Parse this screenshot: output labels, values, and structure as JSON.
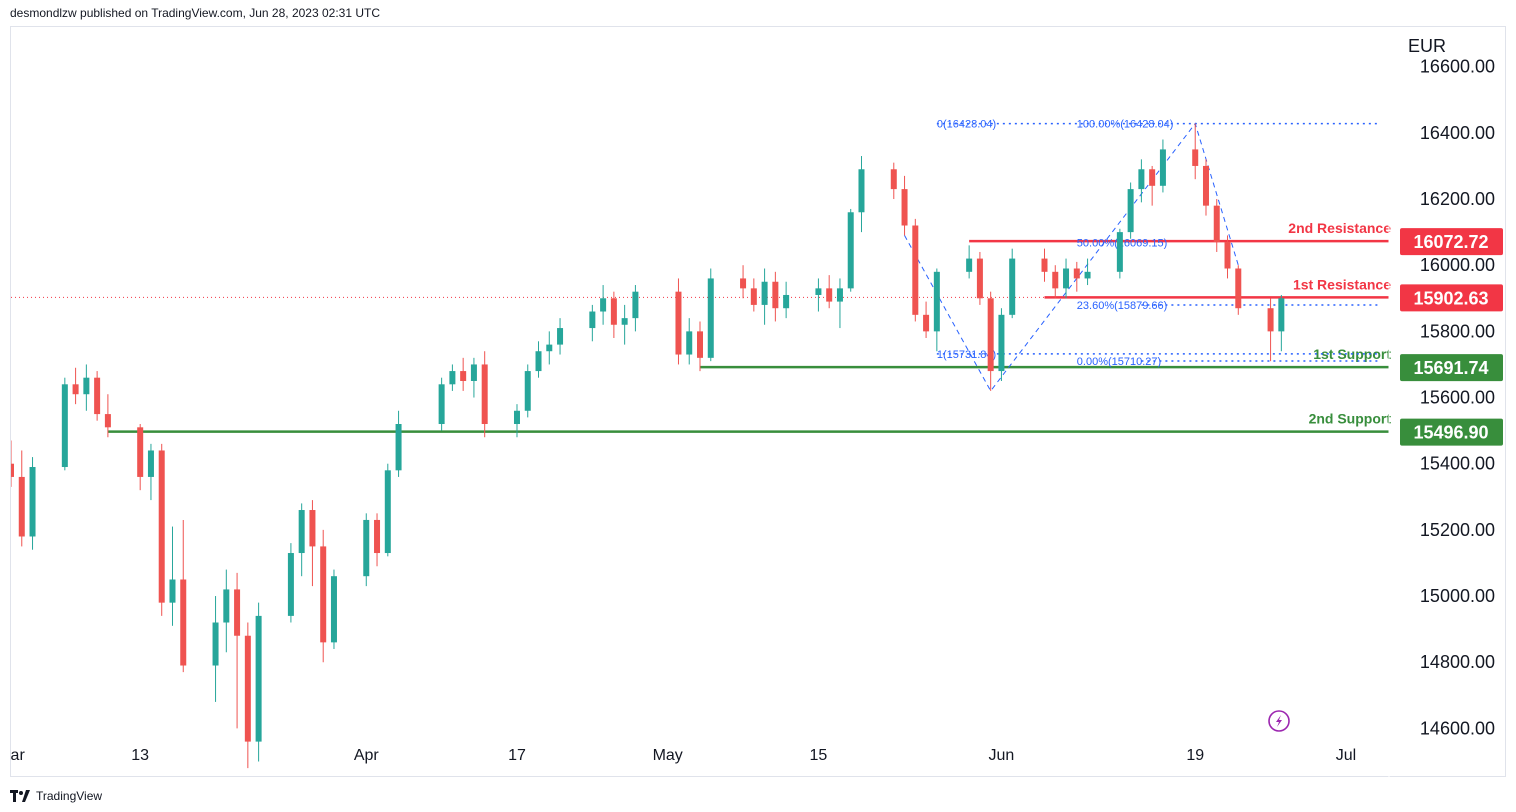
{
  "header": {
    "publisher": "desmondlzw published on TradingView.com, Jun 28, 2023 02:31 UTC"
  },
  "footer": {
    "brand": "TradingView",
    "logo_icon": "tradingview-logo-icon"
  },
  "chart_data": {
    "type": "candlestick",
    "currency": "EUR",
    "y_range": [
      14450,
      16720
    ],
    "y_ticks": [
      "16600.00",
      "16400.00",
      "16200.00",
      "16000.00",
      "15800.00",
      "15600.00",
      "15400.00",
      "15200.00",
      "15000.00",
      "14800.00",
      "14600.00"
    ],
    "y_tick_values": [
      16600,
      16400,
      16200,
      16000,
      15800,
      15600,
      15400,
      15200,
      15000,
      14800,
      14600
    ],
    "x_range": [
      "2023-03-01",
      "2023-07-07"
    ],
    "x_ticks": [
      {
        "label": "Mar",
        "date": "2023-03-01"
      },
      {
        "label": "13",
        "date": "2023-03-13"
      },
      {
        "label": "Apr",
        "date": "2023-04-03"
      },
      {
        "label": "17",
        "date": "2023-04-17"
      },
      {
        "label": "May",
        "date": "2023-05-01"
      },
      {
        "label": "15",
        "date": "2023-05-15"
      },
      {
        "label": "Jun",
        "date": "2023-06-01"
      },
      {
        "label": "19",
        "date": "2023-06-19"
      },
      {
        "label": "Jul",
        "date": "2023-07-03"
      }
    ],
    "last_price": 15902.63,
    "colors": {
      "up": "#26a69a",
      "down": "#ef5350",
      "resistance": "#f23645",
      "support": "#388e3c",
      "fib": "#2962ff",
      "last": "#f23645"
    },
    "levels": [
      {
        "name": "2nd Resistance",
        "value": 16072.72,
        "badge": "16072.72",
        "kind": "resistance",
        "start": "2023-05-29",
        "color": "#f23645"
      },
      {
        "name": "1st Resistance",
        "value": 15902.63,
        "badge": "15902.63",
        "kind": "resistance",
        "start": "2023-06-05",
        "color": "#f23645"
      },
      {
        "name": "1st Support",
        "value": 15691.74,
        "badge": "15691.74",
        "kind": "support",
        "start": "2023-05-04",
        "color": "#388e3c"
      },
      {
        "name": "2nd Support",
        "value": 15496.9,
        "badge": "15496.90",
        "kind": "support",
        "start": "2023-03-10",
        "color": "#388e3c"
      }
    ],
    "fib_annotations": [
      {
        "text": "0(16428.04)",
        "date": "2023-05-26",
        "value": 16428.04
      },
      {
        "text": "1(15731.84)",
        "date": "2023-05-26",
        "value": 15731.84
      },
      {
        "text": "100.00%(16428.04)",
        "date": "2023-06-08",
        "value": 16428.04
      },
      {
        "text": "50.00%(16069.15)",
        "date": "2023-06-08",
        "value": 16069.15
      },
      {
        "text": "23.60%(15879.66)",
        "date": "2023-06-08",
        "value": 15879.66
      },
      {
        "text": "0.00%(15710.27)",
        "date": "2023-06-08",
        "value": 15710.27
      }
    ],
    "fib_lines": [
      {
        "from": "2023-05-26",
        "to": "2023-07-06",
        "value": 16428.04
      },
      {
        "from": "2023-06-14",
        "to": "2023-07-06",
        "value": 15879.66
      },
      {
        "from": "2023-05-26",
        "to": "2023-07-06",
        "value": 15731.84
      },
      {
        "from": "2023-06-14",
        "to": "2023-07-06",
        "value": 15710.27
      }
    ],
    "zigzag": [
      {
        "date": "2023-05-23",
        "value": 16090
      },
      {
        "date": "2023-05-31",
        "value": 15620
      },
      {
        "date": "2023-06-19",
        "value": 16428.04
      },
      {
        "date": "2023-06-23",
        "value": 16000
      }
    ],
    "candles": [
      {
        "d": "2023-03-01",
        "o": 15400,
        "h": 15470,
        "l": 15330,
        "c": 15360
      },
      {
        "d": "2023-03-02",
        "o": 15360,
        "h": 15440,
        "l": 15150,
        "c": 15180
      },
      {
        "d": "2023-03-03",
        "o": 15180,
        "h": 15420,
        "l": 15140,
        "c": 15390
      },
      {
        "d": "2023-03-06",
        "o": 15390,
        "h": 15660,
        "l": 15380,
        "c": 15640
      },
      {
        "d": "2023-03-07",
        "o": 15640,
        "h": 15690,
        "l": 15580,
        "c": 15610
      },
      {
        "d": "2023-03-08",
        "o": 15610,
        "h": 15700,
        "l": 15560,
        "c": 15660
      },
      {
        "d": "2023-03-09",
        "o": 15660,
        "h": 15680,
        "l": 15530,
        "c": 15550
      },
      {
        "d": "2023-03-10",
        "o": 15550,
        "h": 15610,
        "l": 15480,
        "c": 15510
      },
      {
        "d": "2023-03-13",
        "o": 15510,
        "h": 15520,
        "l": 15320,
        "c": 15360
      },
      {
        "d": "2023-03-14",
        "o": 15360,
        "h": 15460,
        "l": 15290,
        "c": 15440
      },
      {
        "d": "2023-03-15",
        "o": 15440,
        "h": 15460,
        "l": 14940,
        "c": 14980
      },
      {
        "d": "2023-03-16",
        "o": 14980,
        "h": 15210,
        "l": 14910,
        "c": 15050
      },
      {
        "d": "2023-03-17",
        "o": 15050,
        "h": 15230,
        "l": 14770,
        "c": 14790
      },
      {
        "d": "2023-03-20",
        "o": 14790,
        "h": 15000,
        "l": 14680,
        "c": 14920
      },
      {
        "d": "2023-03-21",
        "o": 14920,
        "h": 15080,
        "l": 14830,
        "c": 15020
      },
      {
        "d": "2023-03-22",
        "o": 15020,
        "h": 15070,
        "l": 14600,
        "c": 14880
      },
      {
        "d": "2023-03-23",
        "o": 14880,
        "h": 14920,
        "l": 14480,
        "c": 14560
      },
      {
        "d": "2023-03-24",
        "o": 14560,
        "h": 14980,
        "l": 14500,
        "c": 14940
      },
      {
        "d": "2023-03-27",
        "o": 14940,
        "h": 15160,
        "l": 14920,
        "c": 15130
      },
      {
        "d": "2023-03-28",
        "o": 15130,
        "h": 15280,
        "l": 15060,
        "c": 15260
      },
      {
        "d": "2023-03-29",
        "o": 15260,
        "h": 15290,
        "l": 15030,
        "c": 15150
      },
      {
        "d": "2023-03-30",
        "o": 15150,
        "h": 15200,
        "l": 14800,
        "c": 14860
      },
      {
        "d": "2023-03-31",
        "o": 14860,
        "h": 15080,
        "l": 14840,
        "c": 15060
      },
      {
        "d": "2023-04-03",
        "o": 15060,
        "h": 15250,
        "l": 15030,
        "c": 15230
      },
      {
        "d": "2023-04-04",
        "o": 15230,
        "h": 15250,
        "l": 15090,
        "c": 15130
      },
      {
        "d": "2023-04-05",
        "o": 15130,
        "h": 15400,
        "l": 15120,
        "c": 15380
      },
      {
        "d": "2023-04-06",
        "o": 15380,
        "h": 15560,
        "l": 15360,
        "c": 15520
      },
      {
        "d": "2023-04-10",
        "o": 15520,
        "h": 15660,
        "l": 15500,
        "c": 15640
      },
      {
        "d": "2023-04-11",
        "o": 15640,
        "h": 15700,
        "l": 15620,
        "c": 15680
      },
      {
        "d": "2023-04-12",
        "o": 15680,
        "h": 15720,
        "l": 15620,
        "c": 15650
      },
      {
        "d": "2023-04-13",
        "o": 15650,
        "h": 15720,
        "l": 15600,
        "c": 15700
      },
      {
        "d": "2023-04-14",
        "o": 15700,
        "h": 15740,
        "l": 15480,
        "c": 15520
      },
      {
        "d": "2023-04-17",
        "o": 15520,
        "h": 15580,
        "l": 15480,
        "c": 15560
      },
      {
        "d": "2023-04-18",
        "o": 15560,
        "h": 15700,
        "l": 15540,
        "c": 15680
      },
      {
        "d": "2023-04-19",
        "o": 15680,
        "h": 15770,
        "l": 15660,
        "c": 15740
      },
      {
        "d": "2023-04-20",
        "o": 15740,
        "h": 15800,
        "l": 15700,
        "c": 15760
      },
      {
        "d": "2023-04-21",
        "o": 15760,
        "h": 15840,
        "l": 15730,
        "c": 15810
      },
      {
        "d": "2023-04-24",
        "o": 15810,
        "h": 15880,
        "l": 15770,
        "c": 15860
      },
      {
        "d": "2023-04-25",
        "o": 15860,
        "h": 15940,
        "l": 15820,
        "c": 15900
      },
      {
        "d": "2023-04-26",
        "o": 15900,
        "h": 15920,
        "l": 15780,
        "c": 15820
      },
      {
        "d": "2023-04-27",
        "o": 15820,
        "h": 15880,
        "l": 15760,
        "c": 15840
      },
      {
        "d": "2023-04-28",
        "o": 15840,
        "h": 15940,
        "l": 15800,
        "c": 15920
      },
      {
        "d": "2023-05-02",
        "o": 15920,
        "h": 15960,
        "l": 15700,
        "c": 15730
      },
      {
        "d": "2023-05-03",
        "o": 15730,
        "h": 15840,
        "l": 15700,
        "c": 15800
      },
      {
        "d": "2023-05-04",
        "o": 15800,
        "h": 15830,
        "l": 15680,
        "c": 15720
      },
      {
        "d": "2023-05-05",
        "o": 15720,
        "h": 15990,
        "l": 15710,
        "c": 15960
      },
      {
        "d": "2023-05-08",
        "o": 15960,
        "h": 16000,
        "l": 15900,
        "c": 15930
      },
      {
        "d": "2023-05-09",
        "o": 15930,
        "h": 15960,
        "l": 15860,
        "c": 15880
      },
      {
        "d": "2023-05-10",
        "o": 15880,
        "h": 15990,
        "l": 15820,
        "c": 15950
      },
      {
        "d": "2023-05-11",
        "o": 15950,
        "h": 15980,
        "l": 15830,
        "c": 15870
      },
      {
        "d": "2023-05-12",
        "o": 15870,
        "h": 15950,
        "l": 15840,
        "c": 15910
      },
      {
        "d": "2023-05-15",
        "o": 15910,
        "h": 15960,
        "l": 15860,
        "c": 15930
      },
      {
        "d": "2023-05-16",
        "o": 15930,
        "h": 15970,
        "l": 15870,
        "c": 15890
      },
      {
        "d": "2023-05-17",
        "o": 15890,
        "h": 15960,
        "l": 15810,
        "c": 15930
      },
      {
        "d": "2023-05-18",
        "o": 15930,
        "h": 16170,
        "l": 15920,
        "c": 16160
      },
      {
        "d": "2023-05-19",
        "o": 16160,
        "h": 16330,
        "l": 16100,
        "c": 16290
      },
      {
        "d": "2023-05-22",
        "o": 16290,
        "h": 16310,
        "l": 16200,
        "c": 16230
      },
      {
        "d": "2023-05-23",
        "o": 16230,
        "h": 16270,
        "l": 16090,
        "c": 16120
      },
      {
        "d": "2023-05-24",
        "o": 16120,
        "h": 16140,
        "l": 15830,
        "c": 15850
      },
      {
        "d": "2023-05-25",
        "o": 15850,
        "h": 15890,
        "l": 15780,
        "c": 15800
      },
      {
        "d": "2023-05-26",
        "o": 15800,
        "h": 15990,
        "l": 15740,
        "c": 15980
      },
      {
        "d": "2023-05-29",
        "o": 15980,
        "h": 16060,
        "l": 15960,
        "c": 16020
      },
      {
        "d": "2023-05-30",
        "o": 16020,
        "h": 16040,
        "l": 15880,
        "c": 15900
      },
      {
        "d": "2023-05-31",
        "o": 15900,
        "h": 15920,
        "l": 15620,
        "c": 15680
      },
      {
        "d": "2023-06-01",
        "o": 15680,
        "h": 15870,
        "l": 15650,
        "c": 15850
      },
      {
        "d": "2023-06-02",
        "o": 15850,
        "h": 16050,
        "l": 15840,
        "c": 16020
      },
      {
        "d": "2023-06-05",
        "o": 16020,
        "h": 16050,
        "l": 15950,
        "c": 15980
      },
      {
        "d": "2023-06-06",
        "o": 15980,
        "h": 16000,
        "l": 15900,
        "c": 15930
      },
      {
        "d": "2023-06-07",
        "o": 15930,
        "h": 16020,
        "l": 15900,
        "c": 15990
      },
      {
        "d": "2023-06-08",
        "o": 15990,
        "h": 16010,
        "l": 15920,
        "c": 15960
      },
      {
        "d": "2023-06-09",
        "o": 15960,
        "h": 16020,
        "l": 15940,
        "c": 15980
      },
      {
        "d": "2023-06-12",
        "o": 15980,
        "h": 16110,
        "l": 15960,
        "c": 16100
      },
      {
        "d": "2023-06-13",
        "o": 16100,
        "h": 16250,
        "l": 16080,
        "c": 16230
      },
      {
        "d": "2023-06-14",
        "o": 16230,
        "h": 16320,
        "l": 16190,
        "c": 16290
      },
      {
        "d": "2023-06-15",
        "o": 16290,
        "h": 16300,
        "l": 16180,
        "c": 16240
      },
      {
        "d": "2023-06-16",
        "o": 16240,
        "h": 16380,
        "l": 16220,
        "c": 16350
      },
      {
        "d": "2023-06-19",
        "o": 16350,
        "h": 16428,
        "l": 16260,
        "c": 16300
      },
      {
        "d": "2023-06-20",
        "o": 16300,
        "h": 16320,
        "l": 16150,
        "c": 16180
      },
      {
        "d": "2023-06-21",
        "o": 16180,
        "h": 16200,
        "l": 16040,
        "c": 16070
      },
      {
        "d": "2023-06-22",
        "o": 16070,
        "h": 16090,
        "l": 15960,
        "c": 15990
      },
      {
        "d": "2023-06-23",
        "o": 15990,
        "h": 16000,
        "l": 15850,
        "c": 15870
      },
      {
        "d": "2023-06-26",
        "o": 15870,
        "h": 15900,
        "l": 15710,
        "c": 15800
      },
      {
        "d": "2023-06-27",
        "o": 15800,
        "h": 15910,
        "l": 15740,
        "c": 15900
      }
    ]
  }
}
